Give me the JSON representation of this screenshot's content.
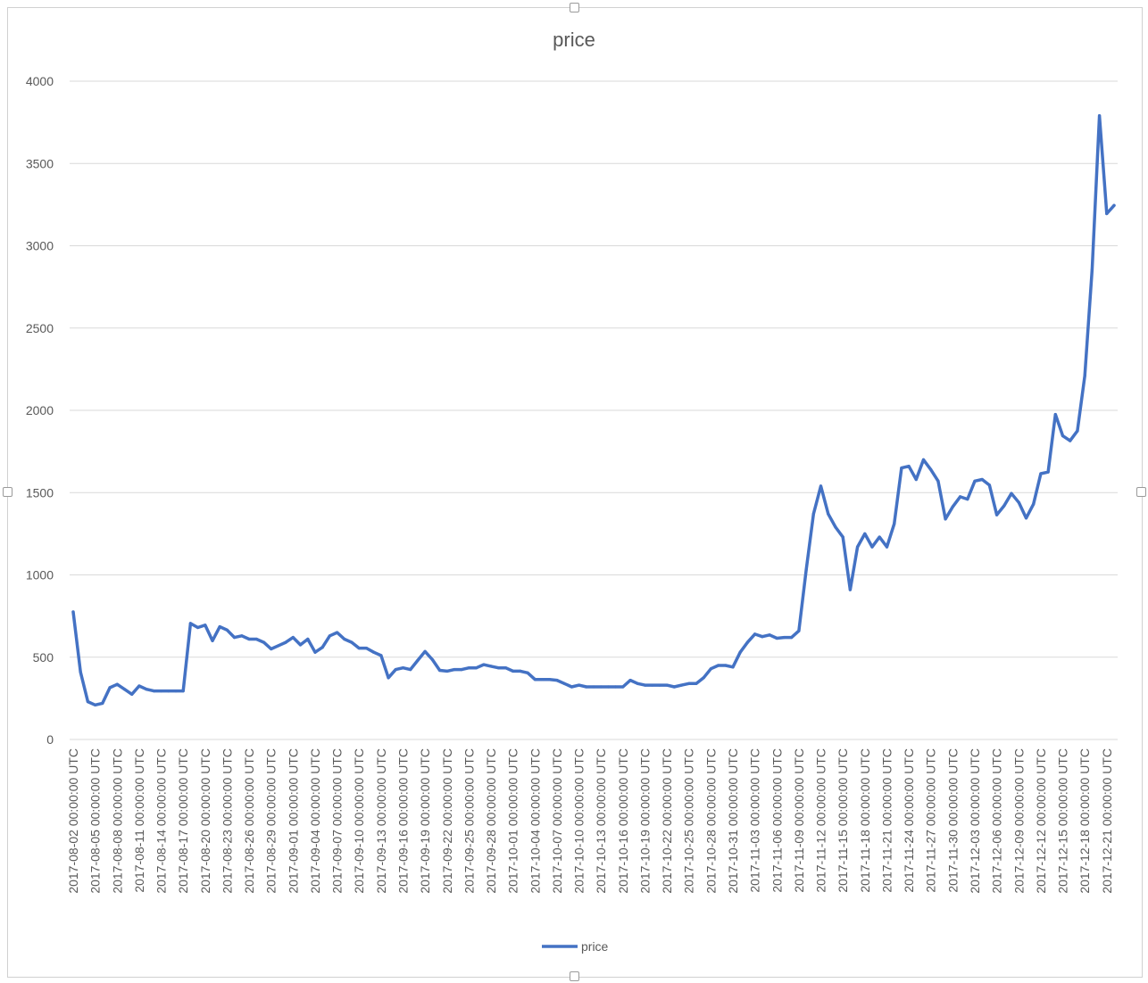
{
  "chart_data": {
    "type": "line",
    "title": "price",
    "xlabel": "",
    "ylabel": "",
    "ylim": [
      0,
      4000
    ],
    "yticks": [
      0,
      500,
      1000,
      1500,
      2000,
      2500,
      3000,
      3500,
      4000
    ],
    "grid": true,
    "legend": "bottom",
    "line_color": "#4472c4",
    "x_tick_labels": [
      "2017-08-02 00:00:00 UTC",
      "2017-08-05 00:00:00 UTC",
      "2017-08-08 00:00:00 UTC",
      "2017-08-11 00:00:00 UTC",
      "2017-08-14 00:00:00 UTC",
      "2017-08-17 00:00:00 UTC",
      "2017-08-20 00:00:00 UTC",
      "2017-08-23 00:00:00 UTC",
      "2017-08-26 00:00:00 UTC",
      "2017-08-29 00:00:00 UTC",
      "2017-09-01 00:00:00 UTC",
      "2017-09-04 00:00:00 UTC",
      "2017-09-07 00:00:00 UTC",
      "2017-09-10 00:00:00 UTC",
      "2017-09-13 00:00:00 UTC",
      "2017-09-16 00:00:00 UTC",
      "2017-09-19 00:00:00 UTC",
      "2017-09-22 00:00:00 UTC",
      "2017-09-25 00:00:00 UTC",
      "2017-09-28 00:00:00 UTC",
      "2017-10-01 00:00:00 UTC",
      "2017-10-04 00:00:00 UTC",
      "2017-10-07 00:00:00 UTC",
      "2017-10-10 00:00:00 UTC",
      "2017-10-13 00:00:00 UTC",
      "2017-10-16 00:00:00 UTC",
      "2017-10-19 00:00:00 UTC",
      "2017-10-22 00:00:00 UTC",
      "2017-10-25 00:00:00 UTC",
      "2017-10-28 00:00:00 UTC",
      "2017-10-31 00:00:00 UTC",
      "2017-11-03 00:00:00 UTC",
      "2017-11-06 00:00:00 UTC",
      "2017-11-09 00:00:00 UTC",
      "2017-11-12 00:00:00 UTC",
      "2017-11-15 00:00:00 UTC",
      "2017-11-18 00:00:00 UTC",
      "2017-11-21 00:00:00 UTC",
      "2017-11-24 00:00:00 UTC",
      "2017-11-27 00:00:00 UTC",
      "2017-11-30 00:00:00 UTC",
      "2017-12-03 00:00:00 UTC",
      "2017-12-06 00:00:00 UTC",
      "2017-12-09 00:00:00 UTC",
      "2017-12-12 00:00:00 UTC",
      "2017-12-15 00:00:00 UTC",
      "2017-12-18 00:00:00 UTC",
      "2017-12-21 00:00:00 UTC"
    ],
    "x": [
      "2017-08-02",
      "2017-08-03",
      "2017-08-04",
      "2017-08-05",
      "2017-08-06",
      "2017-08-07",
      "2017-08-08",
      "2017-08-09",
      "2017-08-10",
      "2017-08-11",
      "2017-08-12",
      "2017-08-13",
      "2017-08-14",
      "2017-08-15",
      "2017-08-16",
      "2017-08-17",
      "2017-08-18",
      "2017-08-19",
      "2017-08-20",
      "2017-08-21",
      "2017-08-22",
      "2017-08-23",
      "2017-08-24",
      "2017-08-25",
      "2017-08-26",
      "2017-08-27",
      "2017-08-28",
      "2017-08-29",
      "2017-08-30",
      "2017-08-31",
      "2017-09-01",
      "2017-09-02",
      "2017-09-03",
      "2017-09-04",
      "2017-09-05",
      "2017-09-06",
      "2017-09-07",
      "2017-09-08",
      "2017-09-09",
      "2017-09-10",
      "2017-09-11",
      "2017-09-12",
      "2017-09-13",
      "2017-09-14",
      "2017-09-15",
      "2017-09-16",
      "2017-09-17",
      "2017-09-18",
      "2017-09-19",
      "2017-09-20",
      "2017-09-21",
      "2017-09-22",
      "2017-09-23",
      "2017-09-24",
      "2017-09-25",
      "2017-09-26",
      "2017-09-27",
      "2017-09-28",
      "2017-09-29",
      "2017-09-30",
      "2017-10-01",
      "2017-10-02",
      "2017-10-03",
      "2017-10-04",
      "2017-10-05",
      "2017-10-06",
      "2017-10-07",
      "2017-10-08",
      "2017-10-09",
      "2017-10-10",
      "2017-10-11",
      "2017-10-12",
      "2017-10-13",
      "2017-10-14",
      "2017-10-15",
      "2017-10-16",
      "2017-10-17",
      "2017-10-18",
      "2017-10-19",
      "2017-10-20",
      "2017-10-21",
      "2017-10-22",
      "2017-10-23",
      "2017-10-24",
      "2017-10-25",
      "2017-10-26",
      "2017-10-27",
      "2017-10-28",
      "2017-10-29",
      "2017-10-30",
      "2017-10-31",
      "2017-11-01",
      "2017-11-02",
      "2017-11-03",
      "2017-11-04",
      "2017-11-05",
      "2017-11-06",
      "2017-11-07",
      "2017-11-08",
      "2017-11-09",
      "2017-11-10",
      "2017-11-11",
      "2017-11-12",
      "2017-11-13",
      "2017-11-14",
      "2017-11-15",
      "2017-11-16",
      "2017-11-17",
      "2017-11-18",
      "2017-11-19",
      "2017-11-20",
      "2017-11-21",
      "2017-11-22",
      "2017-11-23",
      "2017-11-24",
      "2017-11-25",
      "2017-11-26",
      "2017-11-27",
      "2017-11-28",
      "2017-11-29",
      "2017-11-30",
      "2017-12-01",
      "2017-12-02",
      "2017-12-03",
      "2017-12-04",
      "2017-12-05",
      "2017-12-06",
      "2017-12-07",
      "2017-12-08",
      "2017-12-09",
      "2017-12-10",
      "2017-12-11",
      "2017-12-12",
      "2017-12-13",
      "2017-12-14",
      "2017-12-15",
      "2017-12-16",
      "2017-12-17",
      "2017-12-18",
      "2017-12-19",
      "2017-12-20",
      "2017-12-21",
      "2017-12-22"
    ],
    "series": [
      {
        "name": "price",
        "values": [
          775,
          410,
          230,
          210,
          220,
          315,
          335,
          305,
          275,
          325,
          305,
          295,
          295,
          295,
          295,
          295,
          705,
          680,
          695,
          600,
          685,
          665,
          620,
          630,
          610,
          610,
          590,
          550,
          570,
          590,
          620,
          575,
          610,
          530,
          560,
          630,
          650,
          610,
          590,
          555,
          555,
          530,
          510,
          375,
          425,
          435,
          425,
          480,
          535,
          485,
          420,
          415,
          425,
          425,
          435,
          435,
          455,
          445,
          435,
          435,
          415,
          415,
          405,
          365,
          365,
          365,
          360,
          340,
          320,
          330,
          320,
          320,
          320,
          320,
          320,
          320,
          360,
          340,
          330,
          330,
          330,
          330,
          320,
          330,
          340,
          340,
          375,
          430,
          450,
          450,
          440,
          530,
          590,
          640,
          625,
          635,
          615,
          620,
          620,
          660,
          1030,
          1370,
          1540,
          1370,
          1290,
          1230,
          910,
          1170,
          1250,
          1170,
          1230,
          1170,
          1310,
          1650,
          1660,
          1580,
          1700,
          1640,
          1570,
          1340,
          1415,
          1475,
          1460,
          1570,
          1580,
          1545,
          1365,
          1420,
          1495,
          1440,
          1345,
          1430,
          1615,
          1625,
          1975,
          1845,
          1815,
          1875,
          2210,
          2855,
          3790,
          3195,
          3245
        ]
      }
    ]
  }
}
